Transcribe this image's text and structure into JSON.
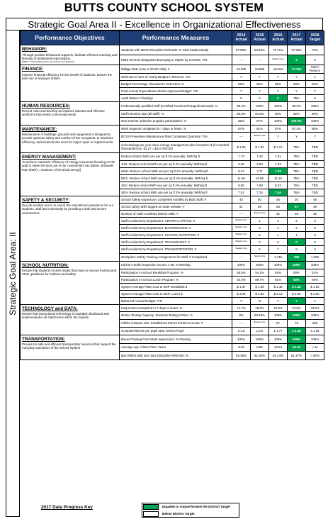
{
  "title": "BUTTS COUNTY SCHOOL SYSTEM",
  "subtitle": "Strategic Goal Area II - Excellence in Organizational Effectiveness",
  "side_label": "Strategic Goal Area: II",
  "headers": {
    "objectives": "Performance Objectives",
    "measures": "Performance Measures",
    "years": [
      [
        "2014",
        "Actual"
      ],
      [
        "2015",
        "Actual"
      ],
      [
        "2016",
        "Actual"
      ],
      [
        "2017",
        "Actual"
      ],
      [
        "2018",
        "Target"
      ]
    ]
  },
  "legend": {
    "key": "2017 Data Progress Key",
    "green_label": "Equaled or Outperformed the District Target",
    "white_label": "Below District Target"
  },
  "sections": [
    {
      "name": "BEHAVIOR:",
      "desc": "Through positive behavioral supports, facilitate effective teaching and learning of behavioral expectations.",
      "note": "(PBIS = Positive Behavioral Interventions and Supports)",
      "rows": [
        {
          "m": "Students with ZERO Discipline Referrals: % Total Student Body",
          "v": [
            "67.85%",
            "63.54%",
            "72.71%",
            "71.99%",
            "73%"
          ],
          "g": -1
        },
        {
          "m": "PBIS Schools designated Emerging or Higher by GADOE: Y/N",
          "v": [
            "---",
            "---",
            "Baseline Year",
            "3",
            "5"
          ],
          "g": 3
        }
      ]
    },
    {
      "name": "FINANCE:",
      "desc": "Improve financial efficiency for the benefit of students. Ensure the best use of taxpayer dollars.",
      "note": "",
      "rows": [
        {
          "m": "Millage Rate (max is 20.00 mills): #",
          "v": [
            "19.000",
            "18.898",
            "18.064",
            "17.764",
            "Hold / Reduce"
          ],
          "g": 3
        },
        {
          "m": "Minimum of 15% of Yearly Budget in Reserve: Y/N",
          "v": [
            "Y",
            "Y",
            "Y",
            "Y",
            "Y"
          ],
          "g": -1
        },
        {
          "m": "Budget Percentage Allocated to Instruction: %",
          "v": [
            "65%",
            "65%",
            "66%",
            "63%",
            "63%"
          ],
          "g": -1
        },
        {
          "m": "Final Annual Expenditures Below Approved Budget: Y/N",
          "v": [
            "Y",
            "Y",
            "Y",
            "Y",
            "Y"
          ],
          "g": -1
        },
        {
          "m": "Audit Status: # findings",
          "v": [
            "0",
            "0",
            "0",
            "TBA",
            "0"
          ],
          "g": 2
        }
      ]
    },
    {
      "name": "HUMAN RESOURCES:",
      "desc": "Recruit, train and develop an inspired, talented and effective workforce that meets community needs",
      "note": "",
      "rows": [
        {
          "m": "Professionally qualified staff (Certified Teachers/Paraprofessionals): %",
          "v": [
            "98.2%",
            "100%",
            "100%",
            "99.3%",
            "100%"
          ],
          "g": -1
        },
        {
          "m": "Staff retention rate (all staff): %",
          "v": [
            "85.6%",
            "84.6%",
            "83%",
            "82%",
            "90%"
          ],
          "g": -1
        },
        {
          "m": "New teacher induction program participation: %",
          "v": [
            "92%",
            "87%",
            "100%",
            "100.0%",
            "100%"
          ],
          "g": 3
        }
      ]
    },
    {
      "name": "MAINTENANCE:",
      "desc": "Maintenance of buildings, grounds and equipment is designed to provide optimum safety and comfort of the occupants, to maximize efficiency, and minimize the need for major repair or replacements.",
      "note": "",
      "rows": [
        {
          "m": "Work requests completed in 7 days or fewer: %",
          "v": [
            "87%",
            "81%",
            "87%",
            "87.3%",
            "88%"
          ],
          "g": -1
        },
        {
          "m": "BCSS Preventive Maintenance Plan Completed Quarterly: Y/N",
          "v": [
            "---",
            "Baseline Year",
            "Y",
            "Y",
            "Y"
          ],
          "g": -1
        },
        {
          "m": "Cost savings per year since energy management plan inception: $ (in hundred thousands) (ex. $1.17 = $117,000.00)",
          "v": [
            "$ 1.03",
            "$ 1.32",
            "$ 1.17",
            "TBA",
            "TBD"
          ],
          "g": -1
        }
      ]
    },
    {
      "name": "ENERGY MANAGEMENT:",
      "desc": "To achieve maximize efficiency of energy resources-focusing on the goal to make the best use of our community's tax dollars. [Kilowatt-hour (kWh) = measure of electrical energy]",
      "note": "",
      "rows": [
        {
          "m": "Reduce District kWh use per sq ft 2% annually: kWh/sq ft",
          "v": [
            "7.73",
            "7.40",
            "7.61",
            "TBA",
            "TBD"
          ],
          "g": -1
        },
        {
          "m": "JHS- Reduce school kWh use per sq ft 2% annually: kWh/sq ft",
          "v": [
            "6.60",
            "6.53",
            "7.23",
            "TBA",
            "TBD"
          ],
          "g": -1
        },
        {
          "m": "HMS- Reduce school kWh use per sq ft 2% annually: kWh/sq ft",
          "v": [
            "8.34",
            "7.71",
            "7.32",
            "TBA",
            "TBD"
          ],
          "g": 2
        },
        {
          "m": "DES- Reduce school kWh use per sq ft 2% annually: kWh/sq ft",
          "v": [
            "11.28",
            "10.85",
            "11.16",
            "TBA",
            "TBD"
          ],
          "g": -1
        },
        {
          "m": "JES- Reduce school kWh use per sq ft 2% annually: kWh/sq ft",
          "v": [
            "8.50",
            "7.89",
            "8.33",
            "TBA",
            "TBD"
          ],
          "g": -1
        },
        {
          "m": "SES- Reduce school kWh use per sq ft 2% annually: kWh/sq ft",
          "v": [
            "7.51",
            "7.34",
            "7.04",
            "TBA",
            "TBD"
          ],
          "g": 2
        }
      ]
    },
    {
      "name": "SAFETY & SECURITY:",
      "desc": "Our job number one is to enrich the educational experience for our students, staff and community by providing a safe and secure environment.",
      "note": "",
      "rows": [
        {
          "m": "School Safety Inspections completed monthly by BOE Staff: #",
          "v": [
            "40",
            "50",
            "46",
            "30",
            "48"
          ],
          "g": -1
        },
        {
          "m": "School safety drills logged on State website: #",
          "v": [
            "61",
            "65",
            "58",
            "57",
            "48"
          ],
          "g": 3
        },
        {
          "m": "Number of Staff Accidents District-wide: #",
          "v": [
            "---",
            "Baseline Year",
            "42",
            "38",
            "35"
          ],
          "g": -1
        },
        {
          "m": "Staff Accidents by Department- CENTRAL OFFICE: #",
          "v": [
            "Baseline Year",
            "1",
            "3",
            "2",
            "0"
          ],
          "g": -1
        },
        {
          "m": "Staff Accidents by Department- MAINTENANCE: #",
          "v": [
            "Baseline Year",
            "3",
            "2",
            "2",
            "0"
          ],
          "g": -1
        },
        {
          "m": "Staff Accidents by Department- SCHOOL NUTRITION: #",
          "v": [
            "Baseline Year",
            "6",
            "1",
            "1",
            "0"
          ],
          "g": -1
        },
        {
          "m": "Staff Accidents by Department- TECHNOLOGY: #",
          "v": [
            "Baseline Year",
            "0",
            "0",
            "0",
            "0"
          ],
          "g": 3
        },
        {
          "m": "Staff Accidents by Department- TRANSPORTATION: #",
          "v": [
            "Baseline Year",
            "2",
            "7",
            "8",
            "0"
          ],
          "g": -1
        },
        {
          "m": "Workplace Safety Training Assignments for Staff: # Completed",
          "v": [
            "---",
            "Baseline Year",
            "1,745",
            "934",
            "1,000"
          ],
          "g": 3
        }
      ]
    },
    {
      "name": "SCHOOL NUTRITION:",
      "desc": "Ensure that students receive meals that meet or exceed Federal and State guidelines for nutrition and safety",
      "note": "",
      "rows": [
        {
          "m": "Kitchen Health Inspection Scores ≥ 95: % Meeting",
          "v": [
            "100%",
            "100%",
            "100%",
            "100%",
            "100%"
          ],
          "g": 3
        },
        {
          "m": "Participation in School Breakfast Program: %",
          "v": [
            "58.6%",
            "54.1%",
            "64%",
            "60%",
            "61%"
          ],
          "g": -1
        },
        {
          "m": "Participation in School Lunch Program: %",
          "v": [
            "92.4%",
            "89.7%",
            "91%",
            "93%",
            "93%"
          ],
          "g": 3
        },
        {
          "m": "System Average Plate Cost to SNP: Breakfast $",
          "v": [
            "$ 1.37",
            "$ 1.58",
            "$ 1.48",
            "$ 1.49",
            "$ 1.50"
          ],
          "g": 3
        },
        {
          "m": "System Average Plate Cost to SNP: Lunch $",
          "v": [
            "$ 3.05",
            "$ 2.82",
            "$ 3.13",
            "$ 2.93",
            "$ 2.90"
          ],
          "g": -1
        },
        {
          "m": "Balanced Annual Budget: Y/N",
          "v": [
            "Y",
            "N",
            "Y",
            "Y",
            "Y"
          ],
          "g": 3
        }
      ]
    },
    {
      "name": "TECHNOLOGY and DATA:",
      "desc": "Ensure that instructional technology is equitably distributed and implemented in all classrooms within the System",
      "note": "",
      "rows": [
        {
          "m": "Help tickets completed in 7 days or fewer: %",
          "v": [
            "71.7%",
            "75.0%",
            "72.8%",
            "72.5%",
            "73.0%"
          ],
          "g": -1
        },
        {
          "m": "Online Testing Capacity: Students Testing Online: %",
          "v": [
            "0%",
            "68.93%",
            "100%",
            "100%",
            "100%"
          ],
          "g": 3
        },
        {
          "m": "Infinite Campus Use: Established Parent Portal Accounts: #",
          "v": [
            "---",
            "Baseline Year",
            "57",
            "78",
            "200"
          ],
          "g": -1
        },
        {
          "m": "Computer/device per pupil ratio: Device:Pupil",
          "v": [
            "1:1.8",
            "1:2.0",
            "1:1.77",
            "1:1.49",
            "1:1.25"
          ],
          "g": 3
        }
      ]
    },
    {
      "name": "TRANSPORTATION:",
      "desc": "Provide for safe and efficient transportation services that support the everyday operations of the School System",
      "note": "",
      "rows": [
        {
          "m": "Buses Passing Final State Inspections: % Passing",
          "v": [
            "100%",
            "100%",
            "100%",
            "100%",
            "100%"
          ],
          "g": 3
        },
        {
          "m": "Average Age of Bus Fleet: Years",
          "v": [
            "9.36",
            "8.85",
            "10.64",
            "10.18",
            "< 11"
          ],
          "g": 3
        },
        {
          "m": "Bus Riders with Zero Bus Discipline Referrals: %",
          "v": [
            "93.35%",
            "91.56%",
            "92.14%",
            "91.37%",
            "> 92%"
          ],
          "g": -1
        }
      ]
    }
  ]
}
